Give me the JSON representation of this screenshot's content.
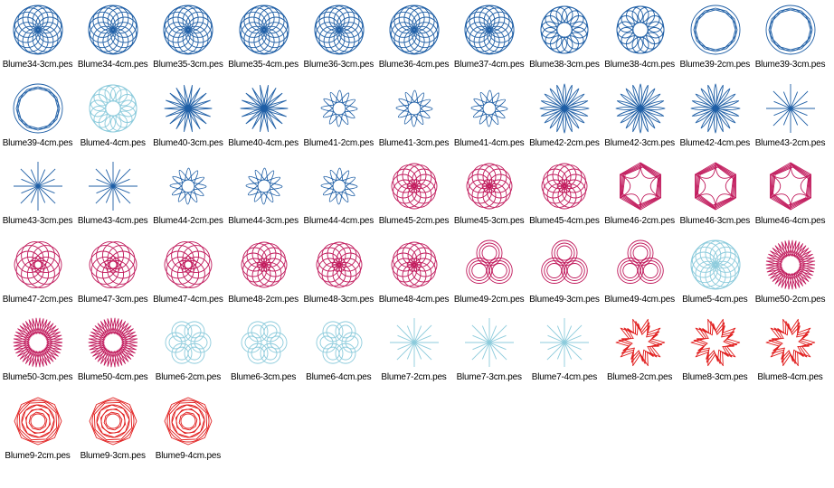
{
  "window": {
    "title": ""
  },
  "palette": {
    "dark_blue": "#1f5fa6",
    "light_blue": "#8ccbdc",
    "magenta": "#c0175a",
    "red": "#e01818"
  },
  "files": [
    {
      "name": "Blume34-3cm.pes",
      "color": "dark_blue",
      "pattern": "rosette-dense"
    },
    {
      "name": "Blume34-4cm.pes",
      "color": "dark_blue",
      "pattern": "rosette-dense"
    },
    {
      "name": "Blume35-3cm.pes",
      "color": "dark_blue",
      "pattern": "rosette-dense"
    },
    {
      "name": "Blume35-4cm.pes",
      "color": "dark_blue",
      "pattern": "rosette-dense"
    },
    {
      "name": "Blume36-3cm.pes",
      "color": "dark_blue",
      "pattern": "rosette-dense"
    },
    {
      "name": "Blume36-4cm.pes",
      "color": "dark_blue",
      "pattern": "rosette-dense"
    },
    {
      "name": "Blume37-4cm.pes",
      "color": "dark_blue",
      "pattern": "rosette-dense"
    },
    {
      "name": "Blume38-3cm.pes",
      "color": "dark_blue",
      "pattern": "ring-mesh"
    },
    {
      "name": "Blume38-4cm.pes",
      "color": "dark_blue",
      "pattern": "ring-mesh"
    },
    {
      "name": "Blume39-2cm.pes",
      "color": "dark_blue",
      "pattern": "ring-thin"
    },
    {
      "name": "Blume39-3cm.pes",
      "color": "dark_blue",
      "pattern": "ring-thin"
    },
    {
      "name": "Blume39-4cm.pes",
      "color": "dark_blue",
      "pattern": "ring-thin"
    },
    {
      "name": "Blume4-4cm.pes",
      "color": "light_blue",
      "pattern": "ring-mesh"
    },
    {
      "name": "Blume40-3cm.pes",
      "color": "dark_blue",
      "pattern": "star-petals"
    },
    {
      "name": "Blume40-4cm.pes",
      "color": "dark_blue",
      "pattern": "star-petals"
    },
    {
      "name": "Blume41-2cm.pes",
      "color": "dark_blue",
      "pattern": "loops-hole"
    },
    {
      "name": "Blume41-3cm.pes",
      "color": "dark_blue",
      "pattern": "loops-hole"
    },
    {
      "name": "Blume41-4cm.pes",
      "color": "dark_blue",
      "pattern": "loops-hole"
    },
    {
      "name": "Blume42-2cm.pes",
      "color": "dark_blue",
      "pattern": "daisy"
    },
    {
      "name": "Blume42-3cm.pes",
      "color": "dark_blue",
      "pattern": "daisy"
    },
    {
      "name": "Blume42-4cm.pes",
      "color": "dark_blue",
      "pattern": "daisy"
    },
    {
      "name": "Blume43-2cm.pes",
      "color": "dark_blue",
      "pattern": "spikes"
    },
    {
      "name": "Blume43-3cm.pes",
      "color": "dark_blue",
      "pattern": "spikes"
    },
    {
      "name": "Blume43-4cm.pes",
      "color": "dark_blue",
      "pattern": "spikes"
    },
    {
      "name": "Blume44-2cm.pes",
      "color": "dark_blue",
      "pattern": "loops-hole"
    },
    {
      "name": "Blume44-3cm.pes",
      "color": "dark_blue",
      "pattern": "loops-hole"
    },
    {
      "name": "Blume44-4cm.pes",
      "color": "dark_blue",
      "pattern": "loops-hole"
    },
    {
      "name": "Blume45-2cm.pes",
      "color": "magenta",
      "pattern": "hex-loops"
    },
    {
      "name": "Blume45-3cm.pes",
      "color": "magenta",
      "pattern": "hex-loops"
    },
    {
      "name": "Blume45-4cm.pes",
      "color": "magenta",
      "pattern": "hex-loops"
    },
    {
      "name": "Blume46-2cm.pes",
      "color": "magenta",
      "pattern": "hexagon"
    },
    {
      "name": "Blume46-3cm.pes",
      "color": "magenta",
      "pattern": "hexagon"
    },
    {
      "name": "Blume46-4cm.pes",
      "color": "magenta",
      "pattern": "hexagon"
    },
    {
      "name": "Blume47-2cm.pes",
      "color": "magenta",
      "pattern": "pent-ring"
    },
    {
      "name": "Blume47-3cm.pes",
      "color": "magenta",
      "pattern": "pent-ring"
    },
    {
      "name": "Blume47-4cm.pes",
      "color": "magenta",
      "pattern": "pent-ring"
    },
    {
      "name": "Blume48-2cm.pes",
      "color": "magenta",
      "pattern": "hex-loops"
    },
    {
      "name": "Blume48-3cm.pes",
      "color": "magenta",
      "pattern": "hex-loops"
    },
    {
      "name": "Blume48-4cm.pes",
      "color": "magenta",
      "pattern": "hex-loops"
    },
    {
      "name": "Blume49-2cm.pes",
      "color": "magenta",
      "pattern": "trefoil"
    },
    {
      "name": "Blume49-3cm.pes",
      "color": "magenta",
      "pattern": "trefoil"
    },
    {
      "name": "Blume49-4cm.pes",
      "color": "magenta",
      "pattern": "trefoil"
    },
    {
      "name": "Blume5-4cm.pes",
      "color": "light_blue",
      "pattern": "rosette-dense"
    },
    {
      "name": "Blume50-2cm.pes",
      "color": "magenta",
      "pattern": "spiky-star"
    },
    {
      "name": "Blume50-3cm.pes",
      "color": "magenta",
      "pattern": "spiky-star"
    },
    {
      "name": "Blume50-4cm.pes",
      "color": "magenta",
      "pattern": "spiky-star"
    },
    {
      "name": "Blume6-2cm.pes",
      "color": "light_blue",
      "pattern": "six-petal"
    },
    {
      "name": "Blume6-3cm.pes",
      "color": "light_blue",
      "pattern": "six-petal"
    },
    {
      "name": "Blume6-4cm.pes",
      "color": "light_blue",
      "pattern": "six-petal"
    },
    {
      "name": "Blume7-2cm.pes",
      "color": "light_blue",
      "pattern": "spikes"
    },
    {
      "name": "Blume7-3cm.pes",
      "color": "light_blue",
      "pattern": "spikes"
    },
    {
      "name": "Blume7-4cm.pes",
      "color": "light_blue",
      "pattern": "spikes"
    },
    {
      "name": "Blume8-2cm.pes",
      "color": "red",
      "pattern": "pointed-star"
    },
    {
      "name": "Blume8-3cm.pes",
      "color": "red",
      "pattern": "pointed-star"
    },
    {
      "name": "Blume8-4cm.pes",
      "color": "red",
      "pattern": "pointed-star"
    },
    {
      "name": "Blume9-2cm.pes",
      "color": "red",
      "pattern": "rose"
    },
    {
      "name": "Blume9-3cm.pes",
      "color": "red",
      "pattern": "rose"
    },
    {
      "name": "Blume9-4cm.pes",
      "color": "red",
      "pattern": "rose"
    }
  ]
}
